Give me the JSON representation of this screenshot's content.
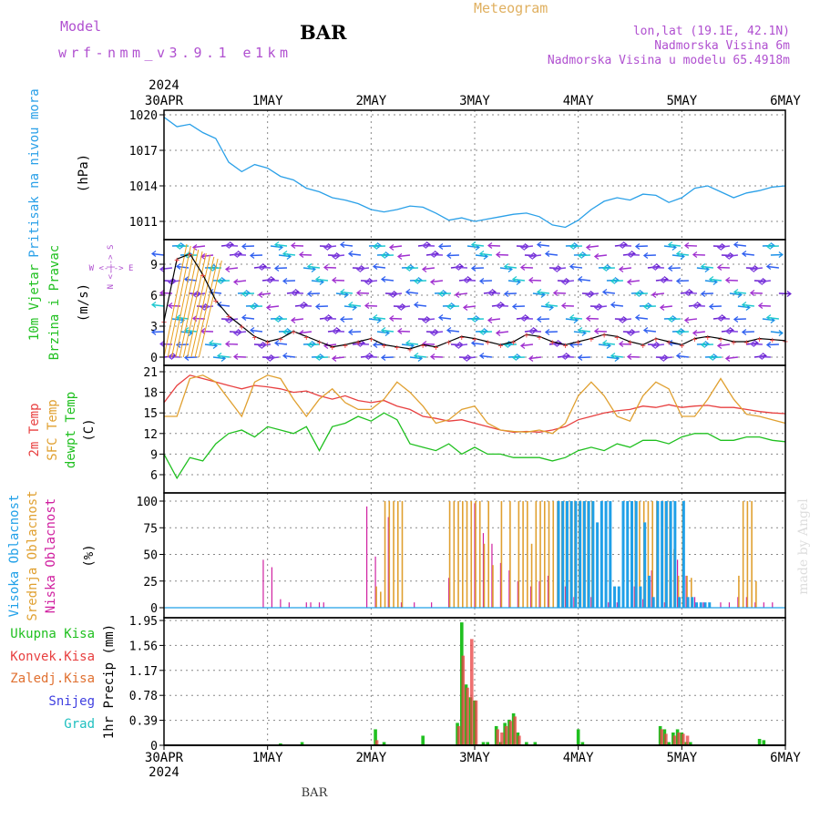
{
  "header": {
    "model_label": "Model",
    "model_name": "wrf-nmm_v3.9.1 e1km",
    "title": "BAR",
    "meteogram": "Meteogram",
    "lonlat": "lon,lat (19.1E, 42.1N)",
    "elevation": "Nadmorska Visina 6m",
    "model_elevation": "Nadmorska Visina u modelu 65.4918m"
  },
  "footer": {
    "station": "BAR",
    "credit": "made by Angel"
  },
  "colors": {
    "pressure": "#2aa0e8",
    "t2m": "#e84040",
    "sfc": "#e0a030",
    "dew": "#20c020",
    "high_cloud": "#20a0e8",
    "mid_cloud": "#e0a030",
    "low_cloud": "#d020a0",
    "total_precip": "#20c020",
    "conv_precip": "#e84040",
    "frozen_precip": "#e07030",
    "snow": "#4040e0",
    "graupel": "#20c0c0",
    "meta_purple": "#b050d0"
  },
  "chart_data": [
    {
      "type": "line",
      "panel": "pressure",
      "ylabel_main": "Pritisak na nivou mora",
      "ylabel_unit": "(hPa)",
      "x_ticks": [
        "30APR",
        "1MAY",
        "2MAY",
        "3MAY",
        "4MAY",
        "5MAY",
        "6MAY"
      ],
      "x_year": "2024",
      "y_ticks": [
        "1020",
        "1017",
        "1014",
        "1011"
      ],
      "ylim": [
        1009,
        1021
      ],
      "x_hours": [
        0,
        3,
        6,
        9,
        12,
        15,
        18,
        21,
        24,
        27,
        30,
        33,
        36,
        39,
        42,
        45,
        48,
        51,
        54,
        57,
        60,
        63,
        66,
        69,
        72,
        75,
        78,
        81,
        84,
        87,
        90,
        93,
        96,
        99,
        102,
        105,
        108,
        111,
        114,
        117,
        120,
        123,
        126,
        129,
        132,
        135,
        138,
        141,
        144
      ],
      "series": [
        {
          "name": "Pritisak na nivou mora",
          "values": [
            1019.8,
            1019.0,
            1019.2,
            1018.5,
            1018.0,
            1016.0,
            1015.2,
            1015.8,
            1015.5,
            1014.8,
            1014.5,
            1013.8,
            1013.5,
            1013.0,
            1012.8,
            1012.5,
            1012.0,
            1011.8,
            1012.0,
            1012.3,
            1012.2,
            1011.7,
            1011.1,
            1011.3,
            1011.0,
            1011.2,
            1011.4,
            1011.6,
            1011.7,
            1011.4,
            1010.7,
            1010.5,
            1011.1,
            1012.0,
            1012.7,
            1013.0,
            1012.8,
            1013.3,
            1013.2,
            1012.6,
            1013.0,
            1013.8,
            1014.0,
            1013.5,
            1013.0,
            1013.4,
            1013.6,
            1013.9,
            1014.0
          ]
        }
      ]
    },
    {
      "type": "line",
      "panel": "wind",
      "ylabel_main": "10m Vjetar",
      "ylabel_sub": "Brzina i Pravac",
      "ylabel_unit": "(m/s)",
      "compass": "W <-|-> E",
      "compass_v": "N <-|-> S",
      "y_ticks": [
        "9",
        "6",
        "3",
        "0"
      ],
      "ylim": [
        -0.5,
        11
      ],
      "x_hours": [
        0,
        3,
        6,
        9,
        12,
        15,
        18,
        21,
        24,
        27,
        30,
        33,
        36,
        39,
        42,
        45,
        48,
        51,
        54,
        57,
        60,
        63,
        66,
        69,
        72,
        75,
        78,
        81,
        84,
        87,
        90,
        93,
        96,
        99,
        102,
        105,
        108,
        111,
        114,
        117,
        120,
        123,
        126,
        129,
        132,
        135,
        138,
        141,
        144
      ],
      "series": [
        {
          "name": "Brzina",
          "values": [
            3.5,
            9.5,
            10,
            8,
            5.5,
            4,
            3,
            2,
            1.5,
            1.8,
            2.5,
            2,
            1.5,
            1,
            1.2,
            1.5,
            1.8,
            1.2,
            1,
            0.8,
            1.2,
            1,
            1.5,
            2,
            1.8,
            1.5,
            1.2,
            1.5,
            2.2,
            2,
            1.5,
            1.2,
            1.5,
            1.8,
            2.2,
            2,
            1.5,
            1.2,
            1.8,
            1.5,
            1.2,
            1.8,
            2,
            1.8,
            1.5,
            1.5,
            1.8,
            1.7,
            1.6
          ]
        }
      ]
    },
    {
      "type": "line",
      "panel": "temperature",
      "ylabel_a": "2m Temp",
      "ylabel_b": "SFC Temp",
      "ylabel_c": "dewpt Temp",
      "ylabel_unit": "(C)",
      "y_ticks": [
        "21",
        "18",
        "15",
        "12",
        "9",
        "6"
      ],
      "ylim": [
        5,
        21.5
      ],
      "x_hours": [
        0,
        3,
        6,
        9,
        12,
        15,
        18,
        21,
        24,
        27,
        30,
        33,
        36,
        39,
        42,
        45,
        48,
        51,
        54,
        57,
        60,
        63,
        66,
        69,
        72,
        75,
        78,
        81,
        84,
        87,
        90,
        93,
        96,
        99,
        102,
        105,
        108,
        111,
        114,
        117,
        120,
        123,
        126,
        129,
        132,
        135,
        138,
        141,
        144
      ],
      "series": [
        {
          "name": "2m Temp",
          "values": [
            16.5,
            19,
            20.5,
            20,
            19.5,
            19,
            18.5,
            19,
            18.8,
            18.5,
            18,
            18.2,
            17.5,
            17,
            17.5,
            16.8,
            16.5,
            16.8,
            16,
            15.5,
            14.5,
            14.2,
            13.8,
            14,
            13.5,
            13,
            12.5,
            12.2,
            12.3,
            12.2,
            12.5,
            13,
            14,
            14.5,
            15,
            15.3,
            15.5,
            16,
            15.8,
            16.2,
            15.8,
            16,
            16.1,
            15.8,
            15.8,
            15.5,
            15.2,
            15,
            14.9
          ]
        },
        {
          "name": "SFC Temp",
          "values": [
            14.5,
            14.5,
            20,
            20.5,
            19.5,
            17,
            14.5,
            19.5,
            20.5,
            20,
            17,
            14.5,
            17,
            18.5,
            16.5,
            15.5,
            15.5,
            17,
            19.5,
            18,
            16,
            13.5,
            14,
            15.5,
            16,
            13.5,
            12.5,
            12.3,
            12.2,
            12.5,
            12,
            13.5,
            17.5,
            19.5,
            17.5,
            14.5,
            13.8,
            17.5,
            19.5,
            18.5,
            14.5,
            14.5,
            17,
            20,
            17,
            14.8,
            14.5,
            14,
            13.5
          ]
        },
        {
          "name": "dewpt Temp",
          "values": [
            9,
            5.5,
            8.5,
            8,
            10.5,
            12,
            12.5,
            11.5,
            13,
            12.5,
            12,
            13,
            9.5,
            13,
            13.5,
            14.5,
            13.8,
            15,
            14,
            10.5,
            10,
            9.5,
            10.5,
            9,
            10,
            9,
            9,
            8.5,
            8.5,
            8.5,
            8,
            8.5,
            9.5,
            10,
            9.5,
            10.5,
            10,
            11,
            11,
            10.5,
            11.5,
            12,
            12,
            11,
            11,
            11.5,
            11.5,
            11,
            10.8
          ]
        }
      ]
    },
    {
      "type": "bar",
      "panel": "cloud",
      "ylabel_a": "Visoka Oblacnost",
      "ylabel_b": "Srednja Oblacnost",
      "ylabel_c": "Niska Oblacnost",
      "ylabel_unit": "(%)",
      "y_ticks": [
        "100",
        "75",
        "50",
        "25",
        "0"
      ],
      "ylim": [
        0,
        100
      ],
      "series": [
        {
          "name": "Niska Oblacnost",
          "x_hours": [
            23,
            25,
            27,
            29,
            33,
            34,
            36,
            37,
            47,
            49,
            52,
            55,
            58,
            62,
            66,
            72,
            74,
            76,
            78,
            80,
            82,
            85,
            87,
            89,
            93,
            95,
            99,
            103,
            105,
            109,
            111,
            113,
            116,
            119,
            121,
            123,
            125,
            129,
            131,
            133,
            135,
            137,
            139,
            141
          ],
          "values": [
            45,
            38,
            8,
            5,
            5,
            5,
            5,
            5,
            95,
            48,
            85,
            5,
            5,
            5,
            28,
            98,
            70,
            60,
            42,
            35,
            25,
            20,
            25,
            30,
            20,
            10,
            10,
            5,
            5,
            20,
            8,
            35,
            5,
            45,
            30,
            10,
            5,
            5,
            5,
            10,
            10,
            5,
            5,
            5
          ]
        },
        {
          "name": "Srednja Oblacnost",
          "x_hours": [
            49,
            50,
            51,
            52,
            53,
            54,
            55,
            66,
            67,
            68,
            69,
            70,
            71,
            72,
            73,
            74,
            75,
            76,
            78,
            80,
            82,
            83,
            84,
            85,
            86,
            87,
            88,
            89,
            90,
            91,
            92,
            93,
            94,
            95,
            96,
            97,
            98,
            99,
            109,
            110,
            111,
            112,
            113,
            114,
            116,
            117,
            118,
            119,
            120,
            121,
            122,
            133,
            134,
            135,
            136,
            137
          ],
          "values": [
            20,
            15,
            100,
            100,
            100,
            100,
            100,
            100,
            100,
            100,
            100,
            100,
            100,
            100,
            100,
            60,
            100,
            40,
            100,
            100,
            100,
            100,
            100,
            60,
            100,
            100,
            100,
            100,
            100,
            100,
            100,
            100,
            100,
            100,
            100,
            100,
            100,
            100,
            100,
            100,
            100,
            100,
            100,
            100,
            100,
            100,
            55,
            30,
            100,
            30,
            28,
            30,
            100,
            100,
            100,
            25
          ]
        },
        {
          "name": "Visoka Oblacnost",
          "x_hours": [
            91,
            92,
            93,
            94,
            95,
            96,
            97,
            98,
            99,
            100,
            101,
            102,
            103,
            104,
            105,
            106,
            107,
            108,
            109,
            110,
            111,
            112,
            113,
            114,
            115,
            116,
            117,
            118,
            119,
            120,
            121,
            122,
            123,
            124,
            125,
            126
          ],
          "values": [
            100,
            100,
            100,
            100,
            100,
            100,
            100,
            100,
            100,
            80,
            100,
            100,
            100,
            20,
            20,
            100,
            100,
            100,
            100,
            20,
            80,
            30,
            10,
            100,
            100,
            100,
            100,
            100,
            10,
            100,
            10,
            10,
            5,
            5,
            5,
            5
          ]
        }
      ]
    },
    {
      "type": "bar",
      "panel": "precip",
      "legend": [
        "Ukupna Kisa",
        "Konvek.Kisa",
        "Zaledj.Kisa",
        "Snijeg",
        "Grad"
      ],
      "ylabel_unit": "1hr Precip (mm)",
      "y_ticks": [
        "1.95",
        "1.56",
        "1.17",
        "0.78",
        "0.39",
        "0"
      ],
      "ylim": [
        0,
        1.95
      ],
      "x_ticks": [
        "30APR",
        "1MAY",
        "2MAY",
        "3MAY",
        "4MAY",
        "5MAY",
        "6MAY"
      ],
      "x_year": "2024",
      "series": [
        {
          "name": "Ukupna Kisa",
          "x_hours": [
            27,
            32,
            49,
            51,
            60,
            68,
            69,
            70,
            71,
            72,
            74,
            75,
            77,
            78,
            79,
            80,
            81,
            82,
            84,
            86,
            96,
            97,
            115,
            116,
            117,
            118,
            119,
            120,
            121,
            122,
            138,
            139
          ],
          "values": [
            0.03,
            0.05,
            0.25,
            0.05,
            0.15,
            0.35,
            1.92,
            0.95,
            0.75,
            0.7,
            0.05,
            0.05,
            0.3,
            0.05,
            0.35,
            0.4,
            0.5,
            0.2,
            0.05,
            0.05,
            0.25,
            0.05,
            0.3,
            0.25,
            0.05,
            0.2,
            0.25,
            0.2,
            0.05,
            0.05,
            0.1,
            0.08
          ]
        },
        {
          "name": "Konvek.Kisa",
          "x_hours": [
            49,
            68,
            69,
            70,
            71,
            72,
            77,
            78,
            79,
            80,
            81,
            82,
            115,
            116,
            118,
            119,
            120,
            121
          ],
          "values": [
            0.08,
            0.3,
            1.4,
            0.9,
            1.66,
            0.7,
            0.25,
            0.2,
            0.3,
            0.38,
            0.45,
            0.15,
            0.25,
            0.18,
            0.15,
            0.2,
            0.18,
            0.15
          ]
        }
      ]
    }
  ]
}
